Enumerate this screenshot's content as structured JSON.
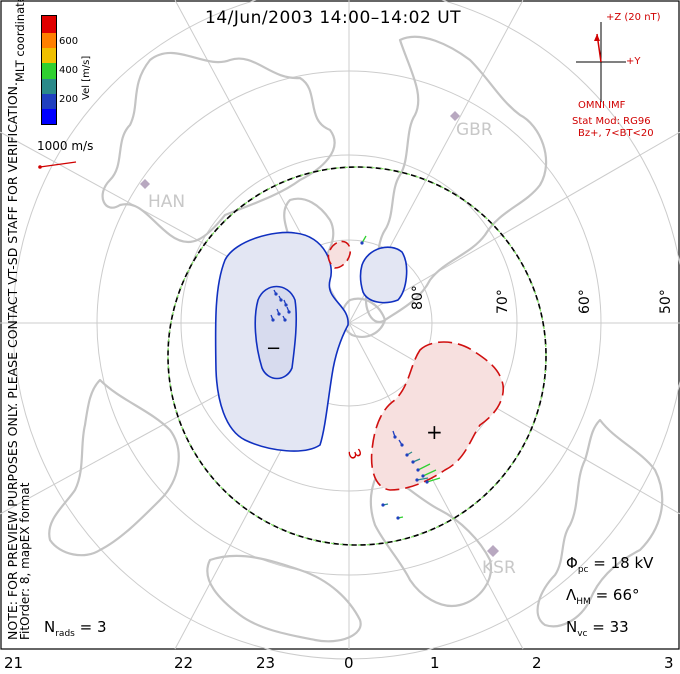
{
  "title": "14/Jun/2003 14:00–14:02 UT",
  "note_lines": [
    "NOTE: FOR PREVIEW PURPOSES ONLY. PLEASE CONTACT VT-SD STAFF FOR VERIFICATION.",
    "FitOrder: 8, mapEX format"
  ],
  "mlt_label": "MLT coordinates",
  "colorbar": {
    "label": "Vel [m/s]",
    "ticks": [
      "600",
      "400",
      "200"
    ],
    "colors": [
      "#e00000",
      "#ff7f00",
      "#f0c000",
      "#30d030",
      "#2a8a8a",
      "#2040c0",
      "#0000ff"
    ]
  },
  "velocity_scale": "1000 m/s",
  "imf": {
    "z_label": "+Z (20 nT)",
    "y_label": "+Y",
    "source": "OMNI IMF",
    "model_lines": [
      "Stat Mod: RG96",
      "Bz+, 7<BT<20"
    ]
  },
  "stations": [
    "HAN",
    "GBR",
    "KSR"
  ],
  "latitudes": [
    "80°",
    "70°",
    "60°",
    "50°"
  ],
  "hours": [
    "21",
    "22",
    "23",
    "0",
    "1",
    "2",
    "3"
  ],
  "contour_labels": {
    "minus": "−",
    "plus": "+",
    "value": "3"
  },
  "stats": {
    "phi_pc": {
      "symbol": "Φ",
      "sub": "pc",
      "value": "= 18 kV"
    },
    "lambda_hm": {
      "symbol": "Λ",
      "sub": "HM",
      "value": "= 66°"
    },
    "n_vc": {
      "symbol": "N",
      "sub": "vc",
      "value": "= 33"
    },
    "n_rads": {
      "symbol": "N",
      "sub": "rads",
      "value": "= 3"
    }
  },
  "colors": {
    "negative_contour": "#1030c0",
    "positive_contour": "#d01010",
    "negative_fill": "#e3e6f3",
    "positive_fill": "#f7e0df",
    "land": "#c8c8c8",
    "grid": "#cccccc"
  }
}
